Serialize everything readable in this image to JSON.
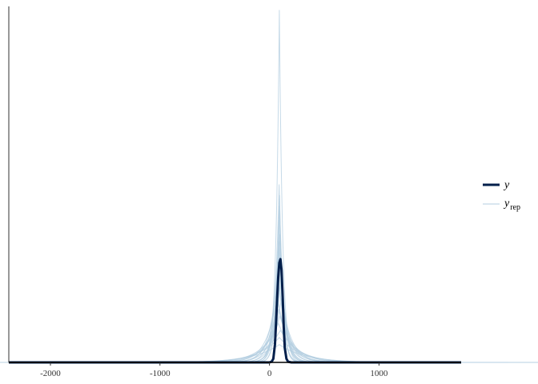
{
  "chart_data": {
    "type": "line",
    "title": "",
    "xlabel": "",
    "ylabel": "",
    "xlim": [
      -2380,
      1750
    ],
    "ylim": [
      0,
      1.0
    ],
    "x_ticks": [
      -2000,
      -1000,
      0,
      1000
    ],
    "x_tick_labels": [
      "-2000",
      "-1000",
      "0",
      "1000"
    ],
    "y_ticks_shown": false,
    "grid": false,
    "legend": {
      "placement": "right",
      "entries": [
        {
          "label": "y",
          "subscript": "",
          "color": "#011f4b",
          "weight": "thick"
        },
        {
          "label": "y",
          "subscript": "rep",
          "color": "#b3cde0",
          "weight": "thin"
        }
      ]
    },
    "series": [
      {
        "name": "y",
        "color": "#011f4b",
        "x": [
          -2380,
          0,
          20,
          35,
          50,
          60,
          70,
          80,
          90,
          100,
          110,
          120,
          130,
          140,
          155,
          170,
          200,
          1750
        ],
        "y": [
          0,
          0,
          0.002,
          0.01,
          0.05,
          0.11,
          0.18,
          0.24,
          0.28,
          0.29,
          0.26,
          0.19,
          0.1,
          0.04,
          0.01,
          0.002,
          0,
          0
        ]
      },
      {
        "name": "y_rep",
        "color": "#b3cde0",
        "draws": [
          {
            "center": 90,
            "scale": 30,
            "peak": 0.99
          },
          {
            "center": 92,
            "scale": 30,
            "peak": 0.47
          },
          {
            "center": 88,
            "scale": 40,
            "peak": 0.5
          },
          {
            "center": 85,
            "scale": 35,
            "peak": 0.4
          },
          {
            "center": 95,
            "scale": 45,
            "peak": 0.36
          },
          {
            "center": 80,
            "scale": 55,
            "peak": 0.32
          },
          {
            "center": 100,
            "scale": 50,
            "peak": 0.3
          },
          {
            "center": 75,
            "scale": 70,
            "peak": 0.26
          },
          {
            "center": 105,
            "scale": 65,
            "peak": 0.24
          },
          {
            "center": 90,
            "scale": 85,
            "peak": 0.21
          },
          {
            "center": 70,
            "scale": 95,
            "peak": 0.19
          },
          {
            "center": 110,
            "scale": 90,
            "peak": 0.18
          },
          {
            "center": 85,
            "scale": 110,
            "peak": 0.15
          },
          {
            "center": 95,
            "scale": 130,
            "peak": 0.13
          },
          {
            "center": 80,
            "scale": 150,
            "peak": 0.11
          },
          {
            "center": 100,
            "scale": 170,
            "peak": 0.09
          },
          {
            "center": 90,
            "scale": 200,
            "peak": 0.07
          },
          {
            "center": 90,
            "scale": 240,
            "peak": 0.05
          },
          {
            "center": 90,
            "scale": 30,
            "peak": 0.44
          },
          {
            "center": 88,
            "scale": 45,
            "peak": 0.34
          }
        ]
      }
    ]
  }
}
